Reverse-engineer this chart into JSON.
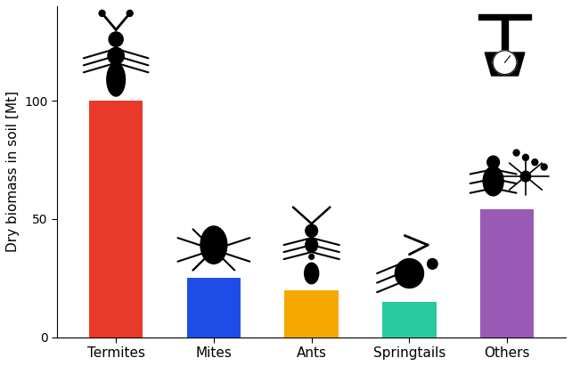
{
  "categories": [
    "Termites",
    "Mites",
    "Ants",
    "Springtails",
    "Others"
  ],
  "values": [
    100,
    25,
    20,
    15,
    54
  ],
  "bar_colors": [
    "#e8392a",
    "#1f4de8",
    "#f5a800",
    "#2bc9a0",
    "#9b59b6"
  ],
  "ylabel": "Dry biomass in soil [Mt]",
  "ylim": [
    0,
    140
  ],
  "yticks": [
    0,
    50,
    100
  ],
  "background_color": "#ffffff",
  "bar_width": 0.55,
  "figsize": [
    6.42,
    4.11
  ],
  "dpi": 100
}
